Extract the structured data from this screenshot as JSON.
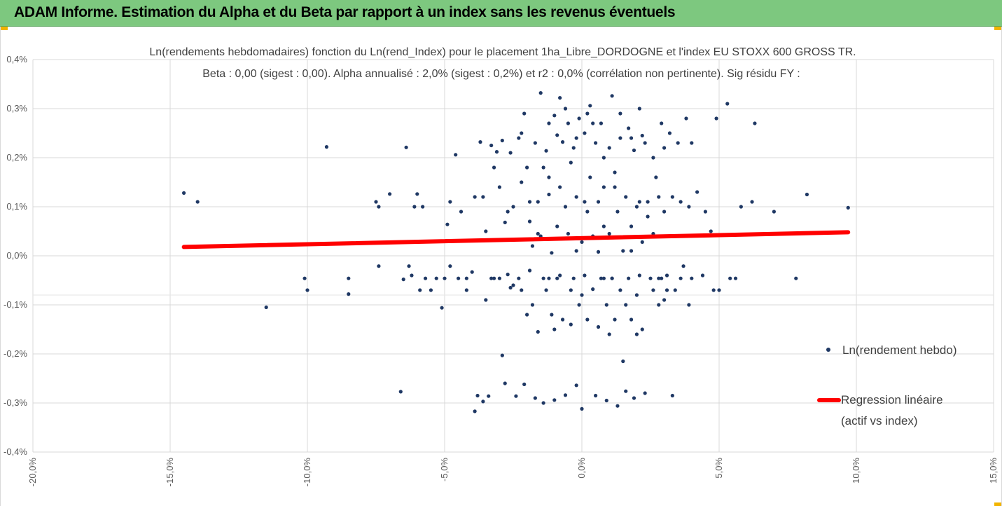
{
  "banner": {
    "title": "ADAM Informe. Estimation du Alpha et du Beta par rapport à un index sans les revenus éventuels",
    "color": "#7dc87f",
    "corner_color": "#f2b400"
  },
  "chart_data": {
    "type": "scatter",
    "title_line1": "Ln(rendements hebdomadaires) fonction du Ln(rend_Index) pour le placement 1ha_Libre_DORDOGNE et l'index EU STOXX 600 GROSS TR.",
    "title_line2": "Beta : 0,00 (sigest : 0,00). Alpha annualisé : 2,0% (sigest : 0,2%) et r2 : 0,0% (corrélation non pertinente). Sig résidu FY :",
    "x_ticks": [
      "-20,0%",
      "-15,0%",
      "-10,0%",
      "-5,0%",
      "0,0%",
      "5,0%",
      "10,0%",
      "15,0%"
    ],
    "y_ticks": [
      "0,4%",
      "0,3%",
      "0,2%",
      "0,1%",
      "0,0%",
      "-0,1%",
      "-0,2%",
      "-0,3%",
      "-0,4%"
    ],
    "xlim": [
      -20,
      15
    ],
    "ylim": [
      -0.4,
      0.4
    ],
    "grid": true,
    "legend_position": "right",
    "series": [
      {
        "name": "Ln(rendement hebdo)",
        "kind": "scatter",
        "color": "#1f3864",
        "points": [
          [
            -14.5,
            0.128
          ],
          [
            -14.0,
            0.11
          ],
          [
            -11.5,
            -0.105
          ],
          [
            -10.1,
            -0.046
          ],
          [
            -10.0,
            -0.07
          ],
          [
            -9.3,
            0.222
          ],
          [
            -8.5,
            -0.046
          ],
          [
            -8.5,
            -0.078
          ],
          [
            -7.5,
            0.11
          ],
          [
            -7.4,
            0.1
          ],
          [
            -7.4,
            -0.021
          ],
          [
            -7.0,
            0.126
          ],
          [
            -6.6,
            -0.277
          ],
          [
            -6.5,
            -0.048
          ],
          [
            -6.4,
            0.221
          ],
          [
            -6.3,
            -0.021
          ],
          [
            -6.2,
            -0.04
          ],
          [
            -6.1,
            0.1
          ],
          [
            -6.0,
            0.126
          ],
          [
            -5.9,
            -0.07
          ],
          [
            -5.8,
            0.1
          ],
          [
            -5.7,
            -0.046
          ],
          [
            -5.5,
            -0.07
          ],
          [
            -5.3,
            -0.046
          ],
          [
            -5.1,
            -0.106
          ],
          [
            -5.0,
            -0.046
          ],
          [
            -4.9,
            0.064
          ],
          [
            -4.8,
            -0.021
          ],
          [
            -4.8,
            0.11
          ],
          [
            -4.6,
            0.206
          ],
          [
            -4.5,
            -0.046
          ],
          [
            -4.4,
            0.09
          ],
          [
            -4.2,
            -0.046
          ],
          [
            -4.0,
            -0.033
          ],
          [
            -3.9,
            -0.317
          ],
          [
            -3.8,
            -0.285
          ],
          [
            -3.7,
            0.232
          ],
          [
            -3.6,
            -0.297
          ],
          [
            -3.6,
            0.12
          ],
          [
            -3.5,
            -0.09
          ],
          [
            -3.4,
            -0.286
          ],
          [
            -3.3,
            -0.046
          ],
          [
            -3.3,
            0.225
          ],
          [
            -3.2,
            0.18
          ],
          [
            -3.1,
            0.212
          ],
          [
            -3.0,
            -0.046
          ],
          [
            -2.9,
            0.235
          ],
          [
            -2.9,
            -0.203
          ],
          [
            -2.8,
            -0.26
          ],
          [
            -2.8,
            0.068
          ],
          [
            -2.7,
            -0.038
          ],
          [
            -2.6,
            0.21
          ],
          [
            -2.5,
            -0.06
          ],
          [
            -2.5,
            0.1
          ],
          [
            -2.4,
            -0.286
          ],
          [
            -2.3,
            0.24
          ],
          [
            -2.2,
            -0.07
          ],
          [
            -2.2,
            0.15
          ],
          [
            -2.1,
            0.29
          ],
          [
            -2.1,
            -0.262
          ],
          [
            -2.0,
            0.18
          ],
          [
            -1.9,
            -0.03
          ],
          [
            -1.9,
            0.07
          ],
          [
            -1.8,
            -0.1
          ],
          [
            -1.7,
            0.23
          ],
          [
            -1.7,
            -0.29
          ],
          [
            -1.6,
            0.11
          ],
          [
            -1.6,
            -0.155
          ],
          [
            -1.5,
            0.04
          ],
          [
            -1.5,
            0.332
          ],
          [
            -1.4,
            -0.046
          ],
          [
            -1.4,
            -0.3
          ],
          [
            -1.3,
            0.214
          ],
          [
            -1.3,
            -0.07
          ],
          [
            -1.2,
            0.125
          ],
          [
            -1.2,
            0.16
          ],
          [
            -1.1,
            0.006
          ],
          [
            -1.1,
            -0.12
          ],
          [
            -1.0,
            0.286
          ],
          [
            -1.0,
            -0.294
          ],
          [
            -0.9,
            0.246
          ],
          [
            -0.9,
            0.06
          ],
          [
            -0.8,
            -0.04
          ],
          [
            -0.8,
            0.322
          ],
          [
            -0.7,
            0.232
          ],
          [
            -0.7,
            -0.13
          ],
          [
            -0.6,
            0.1
          ],
          [
            -0.6,
            -0.284
          ],
          [
            -0.5,
            0.27
          ],
          [
            -0.5,
            0.045
          ],
          [
            -0.4,
            -0.07
          ],
          [
            -0.4,
            0.19
          ],
          [
            -0.3,
            -0.046
          ],
          [
            -0.3,
            0.22
          ],
          [
            -0.2,
            0.12
          ],
          [
            -0.2,
            -0.264
          ],
          [
            -0.1,
            0.28
          ],
          [
            -0.1,
            -0.1
          ],
          [
            0.0,
            0.028
          ],
          [
            0.0,
            -0.312
          ],
          [
            0.1,
            0.25
          ],
          [
            0.1,
            -0.04
          ],
          [
            0.2,
            0.09
          ],
          [
            0.2,
            -0.13
          ],
          [
            0.3,
            0.306
          ],
          [
            0.3,
            0.16
          ],
          [
            0.4,
            -0.068
          ],
          [
            0.4,
            0.04
          ],
          [
            0.5,
            0.23
          ],
          [
            0.5,
            -0.285
          ],
          [
            0.6,
            0.11
          ],
          [
            0.6,
            -0.145
          ],
          [
            0.7,
            0.27
          ],
          [
            0.7,
            -0.046
          ],
          [
            0.8,
            0.06
          ],
          [
            0.8,
            0.2
          ],
          [
            0.9,
            -0.1
          ],
          [
            0.9,
            -0.295
          ],
          [
            1.0,
            0.22
          ],
          [
            1.0,
            0.045
          ],
          [
            1.1,
            0.326
          ],
          [
            1.1,
            -0.046
          ],
          [
            1.2,
            0.14
          ],
          [
            1.2,
            -0.13
          ],
          [
            1.3,
            -0.306
          ],
          [
            1.3,
            0.09
          ],
          [
            1.4,
            0.24
          ],
          [
            1.4,
            -0.07
          ],
          [
            1.5,
            0.01
          ],
          [
            1.5,
            -0.215
          ],
          [
            1.6,
            0.12
          ],
          [
            1.6,
            -0.276
          ],
          [
            1.7,
            0.26
          ],
          [
            1.7,
            -0.046
          ],
          [
            1.8,
            0.06
          ],
          [
            1.8,
            -0.13
          ],
          [
            1.9,
            0.215
          ],
          [
            1.9,
            -0.29
          ],
          [
            2.0,
            0.1
          ],
          [
            2.0,
            -0.08
          ],
          [
            2.1,
            0.3
          ],
          [
            2.1,
            -0.04
          ],
          [
            2.2,
            0.028
          ],
          [
            2.2,
            -0.15
          ],
          [
            2.3,
            0.23
          ],
          [
            2.3,
            -0.28
          ],
          [
            2.4,
            0.11
          ],
          [
            2.5,
            -0.046
          ],
          [
            2.6,
            0.2
          ],
          [
            2.6,
            -0.07
          ],
          [
            2.7,
            0.16
          ],
          [
            2.8,
            -0.1
          ],
          [
            2.9,
            0.27
          ],
          [
            2.9,
            -0.046
          ],
          [
            3.0,
            0.09
          ],
          [
            3.0,
            0.22
          ],
          [
            3.1,
            -0.04
          ],
          [
            3.2,
            0.25
          ],
          [
            3.3,
            -0.285
          ],
          [
            3.3,
            0.12
          ],
          [
            3.4,
            -0.07
          ],
          [
            3.5,
            0.23
          ],
          [
            3.6,
            0.11
          ],
          [
            3.7,
            -0.021
          ],
          [
            3.8,
            0.28
          ],
          [
            3.9,
            0.1
          ],
          [
            3.9,
            -0.1
          ],
          [
            4.0,
            0.23
          ],
          [
            4.0,
            -0.046
          ],
          [
            4.2,
            0.13
          ],
          [
            4.4,
            -0.04
          ],
          [
            4.5,
            0.09
          ],
          [
            4.7,
            0.05
          ],
          [
            4.8,
            -0.07
          ],
          [
            4.9,
            0.28
          ],
          [
            5.0,
            -0.07
          ],
          [
            5.3,
            0.31
          ],
          [
            5.4,
            -0.046
          ],
          [
            5.6,
            -0.046
          ],
          [
            5.8,
            0.1
          ],
          [
            6.2,
            0.11
          ],
          [
            6.3,
            0.27
          ],
          [
            7.0,
            0.09
          ],
          [
            7.8,
            -0.046
          ],
          [
            8.2,
            0.125
          ],
          [
            9.7,
            0.098
          ],
          [
            -3.9,
            0.12
          ],
          [
            -3.5,
            0.05
          ],
          [
            -2.7,
            0.09
          ],
          [
            -2.3,
            -0.046
          ],
          [
            -1.8,
            0.02
          ],
          [
            -1.4,
            0.18
          ],
          [
            -1.0,
            -0.15
          ],
          [
            -0.6,
            0.3
          ],
          [
            -0.2,
            0.01
          ],
          [
            0.2,
            0.29
          ],
          [
            0.6,
            0.008
          ],
          [
            1.0,
            -0.16
          ],
          [
            1.4,
            0.29
          ],
          [
            1.8,
            0.01
          ],
          [
            2.2,
            0.245
          ],
          [
            2.6,
            0.045
          ],
          [
            3.0,
            -0.09
          ],
          [
            -4.2,
            -0.07
          ],
          [
            -3.0,
            0.14
          ],
          [
            -2.0,
            -0.12
          ],
          [
            -1.2,
            0.27
          ],
          [
            -0.4,
            -0.14
          ],
          [
            0.4,
            0.27
          ],
          [
            1.2,
            0.17
          ],
          [
            2.0,
            -0.16
          ],
          [
            2.8,
            0.12
          ],
          [
            3.6,
            -0.046
          ],
          [
            -2.6,
            -0.065
          ],
          [
            -1.6,
            0.045
          ],
          [
            -0.8,
            0.14
          ],
          [
            0.0,
            -0.08
          ],
          [
            0.8,
            0.14
          ],
          [
            1.6,
            -0.1
          ],
          [
            2.4,
            0.08
          ],
          [
            -3.2,
            -0.046
          ],
          [
            -2.2,
            0.25
          ],
          [
            -1.2,
            -0.046
          ],
          [
            -0.2,
            0.24
          ],
          [
            0.8,
            -0.046
          ],
          [
            1.8,
            0.24
          ],
          [
            2.8,
            -0.046
          ],
          [
            -1.9,
            0.11
          ],
          [
            -0.9,
            -0.046
          ],
          [
            0.1,
            0.11
          ],
          [
            1.1,
            -0.046
          ],
          [
            2.1,
            0.11
          ],
          [
            3.1,
            -0.07
          ]
        ]
      },
      {
        "name": "Regression linéaire\n(actif vs index)",
        "kind": "line",
        "color": "#ff0000",
        "points": [
          [
            -14.5,
            0.018
          ],
          [
            9.7,
            0.048
          ]
        ]
      }
    ]
  }
}
